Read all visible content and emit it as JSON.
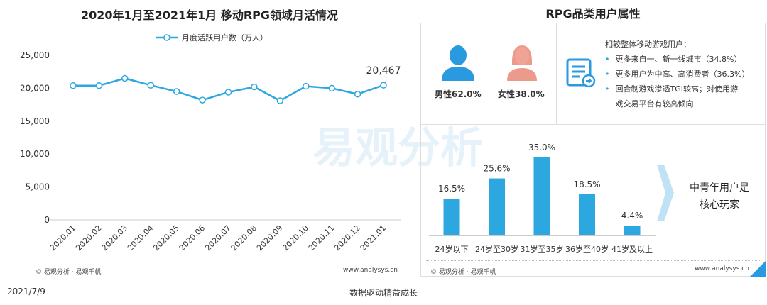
{
  "left": {
    "title": "2020年1月至2021年1月 移动RPG领域月活情况",
    "source": "© 易观分析 · 易观千帆",
    "url": "www.analysys.cn"
  },
  "right": {
    "title": "RPG品类用户属性",
    "gender": {
      "male": "男性62.0%",
      "female": "女性38.0%",
      "male_color": "#2a9ae0",
      "female_color": "#ec9a8c"
    },
    "compare_title": "相较整体移动游戏用户：",
    "bullets": [
      "更多来自一、新一线城市（34.8%）",
      "更多用户为中高、高消费者（36.3%）",
      "回合制游戏渗透TGI较高；对使用游戏交易平台有较高倾向"
    ],
    "conclusion_line1": "中青年用户是",
    "conclusion_line2": "核心玩家",
    "source": "© 易观分析 · 易观千帆",
    "url": "www.analysys.cn"
  },
  "watermark": "易观分析",
  "footer": {
    "date": "2021/7/9",
    "slogan": "数据驱动精益成长"
  },
  "chart_data": [
    {
      "type": "line",
      "title": "2020年1月至2021年1月 移动RPG领域月活情况",
      "categories": [
        "2020.01",
        "2020.02",
        "2020.03",
        "2020.04",
        "2020.05",
        "2020.06",
        "2020.07",
        "2020.08",
        "2020.09",
        "2020.10",
        "2020.11",
        "2020.12",
        "2021.01"
      ],
      "series": [
        {
          "name": "月度活跃用户数（万人）",
          "values": [
            20400,
            20400,
            21500,
            20450,
            19500,
            18200,
            19400,
            20200,
            18100,
            20300,
            20000,
            19100,
            20467
          ],
          "color": "#2ca7e0"
        }
      ],
      "data_labels": {
        "12": "20,467"
      },
      "yticks": [
        "0",
        "5,000",
        "10,000",
        "15,000",
        "20,000",
        "25,000"
      ],
      "ylim": [
        0,
        25000
      ],
      "legend": "top",
      "grid": false
    },
    {
      "type": "bar",
      "categories": [
        "24岁以下",
        "24岁至30岁",
        "31岁至35岁",
        "36岁至40岁",
        "41岁及以上"
      ],
      "values": [
        16.5,
        25.6,
        35.0,
        18.5,
        4.4
      ],
      "labels": [
        "16.5%",
        "25.6%",
        "35.0%",
        "18.5%",
        "4.4%"
      ],
      "color": "#2ca7e0"
    }
  ]
}
